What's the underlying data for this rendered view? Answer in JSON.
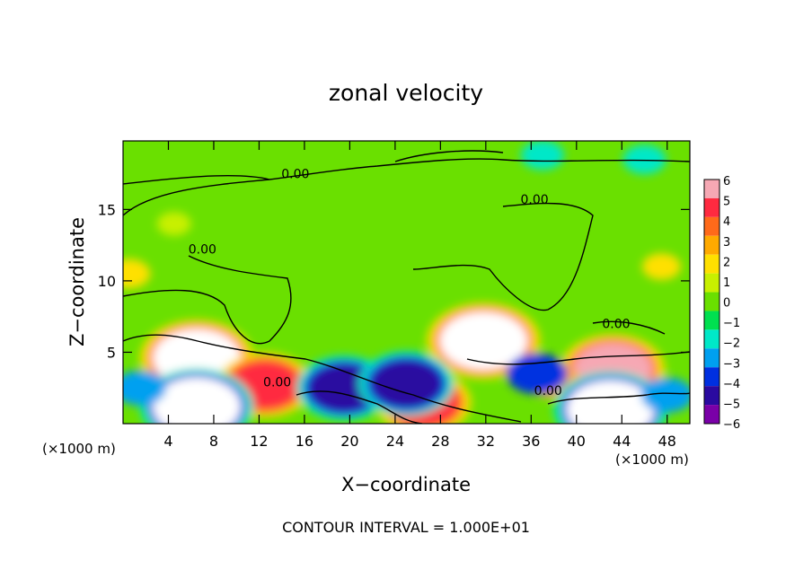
{
  "chart_data": {
    "type": "heatmap",
    "title": "zonal velocity",
    "xlabel": "X−coordinate",
    "ylabel": "Z−coordinate",
    "x_unit": "(×1000 m)",
    "y_unit": "(×1000 m)",
    "xlim": [
      0,
      50
    ],
    "ylim": [
      0,
      19.8
    ],
    "x_ticks": [
      4,
      8,
      12,
      16,
      20,
      24,
      28,
      32,
      36,
      40,
      44,
      48
    ],
    "y_ticks": [
      5,
      10,
      15
    ],
    "colorbar_levels": [
      6,
      5,
      4,
      3,
      2,
      1,
      0,
      -1,
      -2,
      -3,
      -4,
      -5,
      -6
    ],
    "colorbar_colors": [
      "#f6a8b4",
      "#ff2a40",
      "#ff6a1a",
      "#ffaa00",
      "#ffe000",
      "#c8f000",
      "#6ae000",
      "#00e050",
      "#00e8c8",
      "#00a0f0",
      "#0030e0",
      "#2a0aa0",
      "#7a00a8"
    ],
    "contour_labels": [
      {
        "text": "0.00",
        "x": 15.2,
        "y": 17.2
      },
      {
        "text": "0.00",
        "x": 36.3,
        "y": 15.4
      },
      {
        "text": "0.00",
        "x": 7.0,
        "y": 11.9
      },
      {
        "text": "0.00",
        "x": 43.5,
        "y": 6.7
      },
      {
        "text": "0.00",
        "x": 13.6,
        "y": 2.6
      },
      {
        "text": "0.00",
        "x": 37.5,
        "y": 2.0
      }
    ],
    "features": [
      {
        "x": 6.5,
        "z": 4.6,
        "value": 7
      },
      {
        "x": 31.8,
        "z": 5.8,
        "value": 7
      },
      {
        "x": 43.2,
        "z": 3.8,
        "value": 6
      },
      {
        "x": 12.5,
        "z": 2.7,
        "value": 5
      },
      {
        "x": 26.5,
        "z": 1.5,
        "value": 5
      },
      {
        "x": 38.0,
        "z": 3.0,
        "value": 3
      },
      {
        "x": 6.5,
        "z": 1.2,
        "value": -7
      },
      {
        "x": 19.5,
        "z": 2.5,
        "value": -5
      },
      {
        "x": 25.0,
        "z": 2.8,
        "value": -5
      },
      {
        "x": 36.5,
        "z": 3.5,
        "value": -4
      },
      {
        "x": 43.0,
        "z": 1.0,
        "value": -7
      },
      {
        "x": 1.5,
        "z": 2.5,
        "value": -3
      },
      {
        "x": 48.0,
        "z": 2.0,
        "value": -3
      },
      {
        "x": 4.5,
        "z": 14.0,
        "value": 1
      },
      {
        "x": 0.5,
        "z": 10.5,
        "value": 2
      },
      {
        "x": 47.5,
        "z": 11.0,
        "value": 1.5
      },
      {
        "x": 37.0,
        "z": 18.8,
        "value": -2
      },
      {
        "x": 46.0,
        "z": 18.5,
        "value": -2
      }
    ],
    "annotation": "CONTOUR INTERVAL = 1.000E+01"
  }
}
